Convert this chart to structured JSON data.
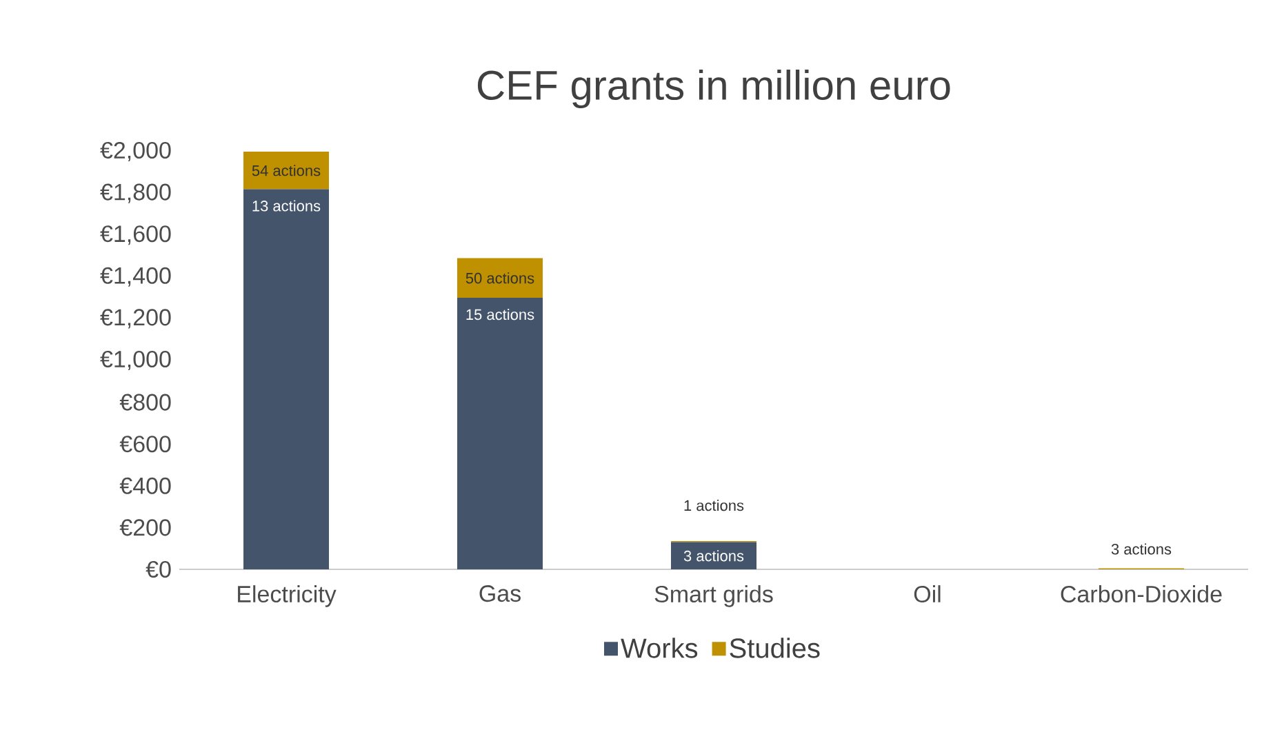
{
  "chart_data": {
    "type": "bar",
    "stacked": true,
    "title": "CEF grants in million euro",
    "categories": [
      "Electricity",
      "Gas",
      "Smart grids",
      "Oil",
      "Carbon-Dioxide"
    ],
    "series": [
      {
        "name": "Works",
        "color": "#44546a",
        "values": [
          1820,
          1300,
          130,
          0,
          0
        ]
      },
      {
        "name": "Studies",
        "color": "#bf9000",
        "values": [
          180,
          190,
          5,
          0,
          5
        ]
      }
    ],
    "annotations": [
      {
        "text": "13 actions",
        "x": "Electricity",
        "y": 1820
      },
      {
        "text": "54 actions",
        "x": "Electricity",
        "y": 2000
      },
      {
        "text": "15 actions",
        "x": "Gas",
        "y": 1300
      },
      {
        "text": "50 actions",
        "x": "Gas",
        "y": 1490
      },
      {
        "text": "3 actions",
        "x": "Smart grids",
        "y": 130
      },
      {
        "text": "1 actions",
        "x": "Smart grids",
        "y": 135
      },
      {
        "text": "3 actions",
        "x": "Carbon-Dioxide",
        "y": 5
      }
    ],
    "ylim": [
      0,
      2000
    ],
    "yticks": [
      {
        "value": 0,
        "label": "€0"
      },
      {
        "value": 200,
        "label": "€200"
      },
      {
        "value": 400,
        "label": "€400"
      },
      {
        "value": 600,
        "label": "€600"
      },
      {
        "value": 800,
        "label": "€800"
      },
      {
        "value": 1000,
        "label": "€1,000"
      },
      {
        "value": 1200,
        "label": "€1,200"
      },
      {
        "value": 1400,
        "label": "€1,400"
      },
      {
        "value": 1600,
        "label": "€1,600"
      },
      {
        "value": 1800,
        "label": "€1,800"
      },
      {
        "value": 2000,
        "label": "€2,000"
      }
    ],
    "grid": false,
    "legend": "bottom"
  }
}
